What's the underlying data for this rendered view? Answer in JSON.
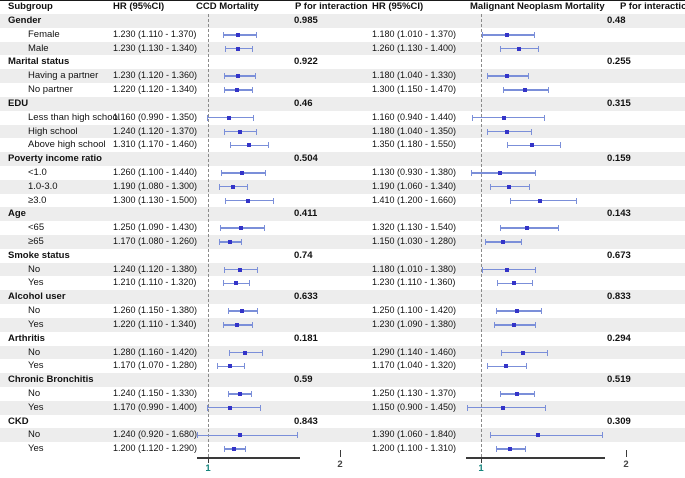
{
  "header": {
    "subgroup": "Subgroup",
    "hr_ci_left": "HR (95%CI)",
    "panel_left": "CCD Mortality",
    "p_left": "P for interaction",
    "hr_ci_right": "HR (95%CI)",
    "panel_right": "Malignant Neoplasm Mortality",
    "p_right": "P for interaction"
  },
  "axis": {
    "tick1": "1",
    "tick2": "2"
  },
  "colors": {
    "marker": "#3434c8",
    "ci": "#7b8fd9",
    "stripe": "#ededed",
    "ref_line": "#8a8a8a",
    "axis_line": "#3a3a3a",
    "tick1_label": "#17857d",
    "tick2_label": "#444444"
  },
  "chart_data": {
    "type": "forest",
    "xlim": [
      1,
      2
    ],
    "panels": [
      {
        "id": "ccd",
        "title": "CCD Mortality"
      },
      {
        "id": "mn",
        "title": "Malignant Neoplasm Mortality"
      }
    ],
    "rows": [
      {
        "type": "category",
        "label": "Gender",
        "p_ccd": "0.985",
        "p_mn": "0.48"
      },
      {
        "type": "item",
        "label": "Female",
        "ccd": {
          "text": "1.230 (1.110 - 1.370)",
          "hr": 1.23,
          "lo": 1.11,
          "hi": 1.37
        },
        "mn": {
          "text": "1.180 (1.010 - 1.370)",
          "hr": 1.18,
          "lo": 1.01,
          "hi": 1.37
        }
      },
      {
        "type": "item",
        "label": "Male",
        "ccd": {
          "text": "1.230 (1.130 - 1.340)",
          "hr": 1.23,
          "lo": 1.13,
          "hi": 1.34
        },
        "mn": {
          "text": "1.260 (1.130 - 1.400)",
          "hr": 1.26,
          "lo": 1.13,
          "hi": 1.4
        }
      },
      {
        "type": "category",
        "label": "Marital status",
        "p_ccd": "0.922",
        "p_mn": "0.255"
      },
      {
        "type": "item",
        "label": "Having a partner",
        "ccd": {
          "text": "1.230 (1.120 - 1.360)",
          "hr": 1.23,
          "lo": 1.12,
          "hi": 1.36
        },
        "mn": {
          "text": "1.180 (1.040 - 1.330)",
          "hr": 1.18,
          "lo": 1.04,
          "hi": 1.33
        }
      },
      {
        "type": "item",
        "label": "No partner",
        "ccd": {
          "text": "1.220 (1.120 - 1.340)",
          "hr": 1.22,
          "lo": 1.12,
          "hi": 1.34
        },
        "mn": {
          "text": "1.300 (1.150 - 1.470)",
          "hr": 1.3,
          "lo": 1.15,
          "hi": 1.47
        }
      },
      {
        "type": "category",
        "label": "EDU",
        "p_ccd": "0.46",
        "p_mn": "0.315"
      },
      {
        "type": "item",
        "label": "Less than high school",
        "ccd": {
          "text": "1.160 (0.990 - 1.350)",
          "hr": 1.16,
          "lo": 0.99,
          "hi": 1.35
        },
        "mn": {
          "text": "1.160 (0.940 - 1.440)",
          "hr": 1.16,
          "lo": 0.94,
          "hi": 1.44
        }
      },
      {
        "type": "item",
        "label": "High school",
        "ccd": {
          "text": "1.240 (1.120 - 1.370)",
          "hr": 1.24,
          "lo": 1.12,
          "hi": 1.37
        },
        "mn": {
          "text": "1.180 (1.040 - 1.350)",
          "hr": 1.18,
          "lo": 1.04,
          "hi": 1.35
        }
      },
      {
        "type": "item",
        "label": "Above high school",
        "ccd": {
          "text": "1.310 (1.170 - 1.460)",
          "hr": 1.31,
          "lo": 1.17,
          "hi": 1.46
        },
        "mn": {
          "text": "1.350 (1.180 - 1.550)",
          "hr": 1.35,
          "lo": 1.18,
          "hi": 1.55
        }
      },
      {
        "type": "category",
        "label": "Poverty income ratio",
        "p_ccd": "0.504",
        "p_mn": "0.159"
      },
      {
        "type": "item",
        "label": "<1.0",
        "ccd": {
          "text": "1.260 (1.100 - 1.440)",
          "hr": 1.26,
          "lo": 1.1,
          "hi": 1.44
        },
        "mn": {
          "text": "1.130 (0.930 - 1.380)",
          "hr": 1.13,
          "lo": 0.93,
          "hi": 1.38
        }
      },
      {
        "type": "item",
        "label": "1.0-3.0",
        "ccd": {
          "text": "1.190 (1.080 - 1.300)",
          "hr": 1.19,
          "lo": 1.08,
          "hi": 1.3
        },
        "mn": {
          "text": "1.190 (1.060 - 1.340)",
          "hr": 1.19,
          "lo": 1.06,
          "hi": 1.34
        }
      },
      {
        "type": "item",
        "label": "≥3.0",
        "ccd": {
          "text": "1.300 (1.130 - 1.500)",
          "hr": 1.3,
          "lo": 1.13,
          "hi": 1.5
        },
        "mn": {
          "text": "1.410 (1.200 - 1.660)",
          "hr": 1.41,
          "lo": 1.2,
          "hi": 1.66
        }
      },
      {
        "type": "category",
        "label": "Age",
        "p_ccd": "0.411",
        "p_mn": "0.143"
      },
      {
        "type": "item",
        "label": "<65",
        "ccd": {
          "text": "1.250 (1.090 - 1.430)",
          "hr": 1.25,
          "lo": 1.09,
          "hi": 1.43
        },
        "mn": {
          "text": "1.320 (1.130 - 1.540)",
          "hr": 1.32,
          "lo": 1.13,
          "hi": 1.54
        }
      },
      {
        "type": "item",
        "label": "≥65",
        "ccd": {
          "text": "1.170 (1.080 - 1.260)",
          "hr": 1.17,
          "lo": 1.08,
          "hi": 1.26
        },
        "mn": {
          "text": "1.150 (1.030 - 1.280)",
          "hr": 1.15,
          "lo": 1.03,
          "hi": 1.28
        }
      },
      {
        "type": "category",
        "label": "Smoke status",
        "p_ccd": "0.74",
        "p_mn": "0.673"
      },
      {
        "type": "item",
        "label": "No",
        "ccd": {
          "text": "1.240 (1.120 - 1.380)",
          "hr": 1.24,
          "lo": 1.12,
          "hi": 1.38
        },
        "mn": {
          "text": "1.180 (1.010 - 1.380)",
          "hr": 1.18,
          "lo": 1.01,
          "hi": 1.38
        }
      },
      {
        "type": "item",
        "label": "Yes",
        "ccd": {
          "text": "1.210 (1.110 - 1.320)",
          "hr": 1.21,
          "lo": 1.11,
          "hi": 1.32
        },
        "mn": {
          "text": "1.230 (1.110 - 1.360)",
          "hr": 1.23,
          "lo": 1.11,
          "hi": 1.36
        }
      },
      {
        "type": "category",
        "label": "Alcohol user",
        "p_ccd": "0.633",
        "p_mn": "0.833"
      },
      {
        "type": "item",
        "label": "No",
        "ccd": {
          "text": "1.260 (1.150 - 1.380)",
          "hr": 1.26,
          "lo": 1.15,
          "hi": 1.38
        },
        "mn": {
          "text": "1.250 (1.100 - 1.420)",
          "hr": 1.25,
          "lo": 1.1,
          "hi": 1.42
        }
      },
      {
        "type": "item",
        "label": "Yes",
        "ccd": {
          "text": "1.220 (1.110 - 1.340)",
          "hr": 1.22,
          "lo": 1.11,
          "hi": 1.34
        },
        "mn": {
          "text": "1.230 (1.090 - 1.380)",
          "hr": 1.23,
          "lo": 1.09,
          "hi": 1.38
        }
      },
      {
        "type": "category",
        "label": "Arthritis",
        "p_ccd": "0.181",
        "p_mn": "0.294"
      },
      {
        "type": "item",
        "label": "No",
        "ccd": {
          "text": "1.280 (1.160 - 1.420)",
          "hr": 1.28,
          "lo": 1.16,
          "hi": 1.42
        },
        "mn": {
          "text": "1.290 (1.140 - 1.460)",
          "hr": 1.29,
          "lo": 1.14,
          "hi": 1.46
        }
      },
      {
        "type": "item",
        "label": "Yes",
        "ccd": {
          "text": "1.170 (1.070 - 1.280)",
          "hr": 1.17,
          "lo": 1.07,
          "hi": 1.28
        },
        "mn": {
          "text": "1.170 (1.040 - 1.320)",
          "hr": 1.17,
          "lo": 1.04,
          "hi": 1.32
        }
      },
      {
        "type": "category",
        "label": "Chronic Bronchitis",
        "p_ccd": "0.59",
        "p_mn": "0.519"
      },
      {
        "type": "item",
        "label": "No",
        "ccd": {
          "text": "1.240 (1.150 - 1.330)",
          "hr": 1.24,
          "lo": 1.15,
          "hi": 1.33
        },
        "mn": {
          "text": "1.250 (1.130 - 1.370)",
          "hr": 1.25,
          "lo": 1.13,
          "hi": 1.37
        }
      },
      {
        "type": "item",
        "label": "Yes",
        "ccd": {
          "text": "1.170 (0.990 - 1.400)",
          "hr": 1.17,
          "lo": 0.99,
          "hi": 1.4
        },
        "mn": {
          "text": "1.150 (0.900 - 1.450)",
          "hr": 1.15,
          "lo": 0.9,
          "hi": 1.45
        }
      },
      {
        "type": "category",
        "label": "CKD",
        "p_ccd": "0.843",
        "p_mn": "0.309"
      },
      {
        "type": "item",
        "label": "No",
        "ccd": {
          "text": "1.240 (0.920 - 1.680)",
          "hr": 1.24,
          "lo": 0.92,
          "hi": 1.68
        },
        "mn": {
          "text": "1.390 (1.060 - 1.840)",
          "hr": 1.39,
          "lo": 1.06,
          "hi": 1.84
        }
      },
      {
        "type": "item",
        "label": "Yes",
        "ccd": {
          "text": "1.200 (1.120 - 1.290)",
          "hr": 1.2,
          "lo": 1.12,
          "hi": 1.29
        },
        "mn": {
          "text": "1.200 (1.100 - 1.310)",
          "hr": 1.2,
          "lo": 1.1,
          "hi": 1.31
        }
      }
    ]
  }
}
